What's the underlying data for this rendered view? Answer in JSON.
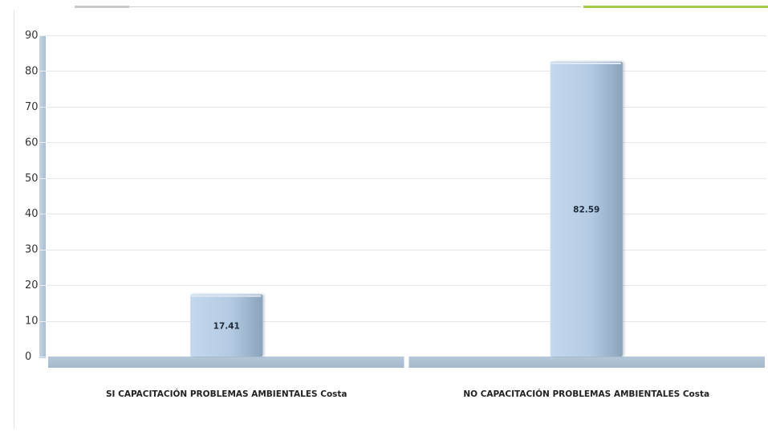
{
  "chart_data": {
    "type": "bar",
    "categories": [
      "SI CAPACITACIÓN PROBLEMAS AMBIENTALES Costa",
      "NO CAPACITACIÓN PROBLEMAS AMBIENTALES Costa"
    ],
    "values": [
      17.41,
      82.59
    ],
    "data_labels": [
      "17.41",
      "82.59"
    ],
    "ylim": [
      0,
      90
    ],
    "yticks": [
      0,
      10,
      20,
      30,
      40,
      50,
      60,
      70,
      80,
      90
    ],
    "grid": true,
    "legend": "none",
    "colors": {
      "bar_light": "#c9dcef",
      "bar_dark": "#8ea8c0",
      "axis": "#b7c9d9",
      "grid": "#e4e8ec",
      "accent_line": "#a6c94a"
    }
  }
}
